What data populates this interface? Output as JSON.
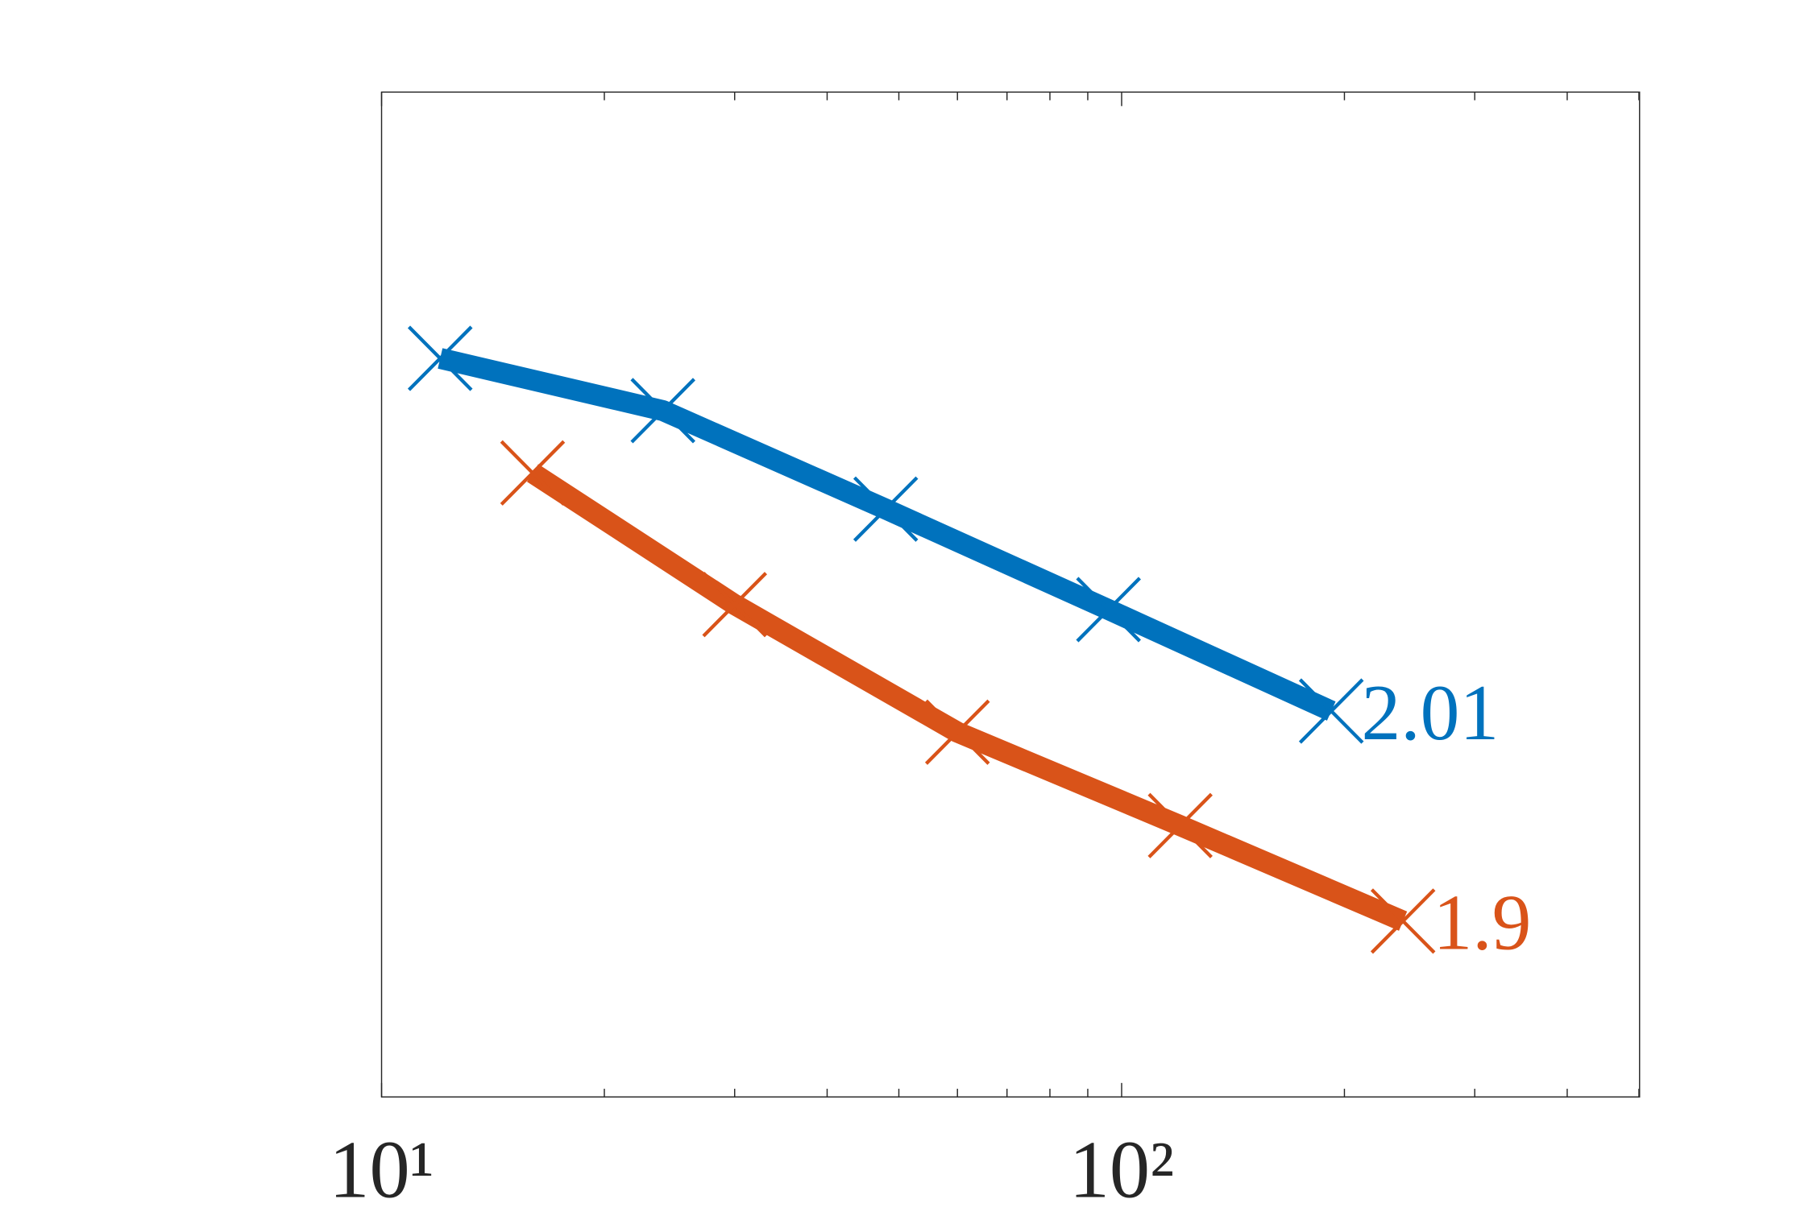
{
  "chart_data": {
    "type": "line",
    "xscale": "log",
    "xlim": [
      10,
      501
    ],
    "xticks": [
      {
        "value": 10,
        "label": "10¹"
      },
      {
        "value": 100,
        "label": "10²"
      }
    ],
    "xminor": [
      20,
      30,
      40,
      50,
      60,
      70,
      80,
      90,
      200,
      300,
      400,
      500
    ],
    "ylim": [
      0,
      1
    ],
    "series": [
      {
        "color": "#0072bd",
        "x": [
          12,
          24,
          48,
          96,
          192
        ],
        "values": [
          0.735,
          0.683,
          0.585,
          0.485,
          0.384
        ],
        "end_label": "2.01"
      },
      {
        "color": "#d95319",
        "x": [
          16,
          30,
          60,
          120,
          240
        ],
        "values": [
          0.621,
          0.49,
          0.363,
          0.27,
          0.175
        ],
        "end_label": "1.9"
      }
    ]
  }
}
